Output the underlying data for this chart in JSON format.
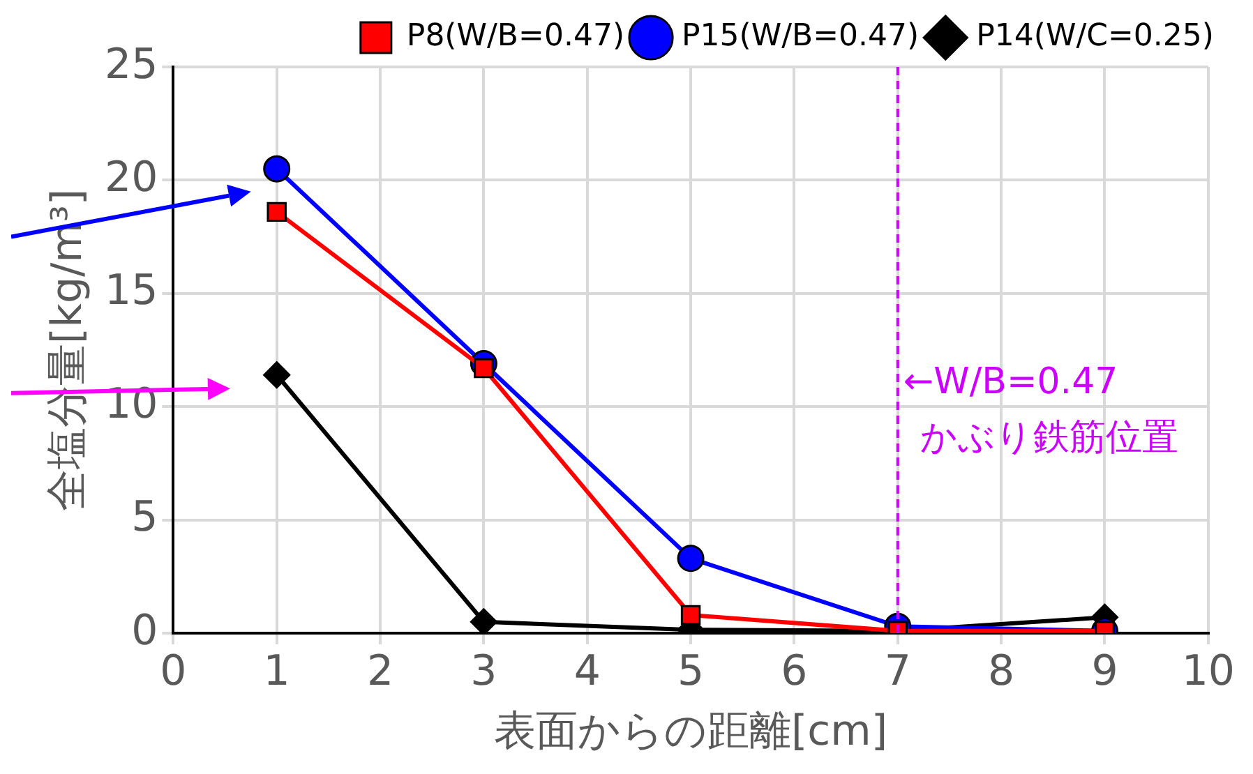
{
  "chart_data": {
    "type": "line",
    "xlabel": "表面からの距離[cm]",
    "ylabel": "全塩分量[kg/m³]",
    "xlim": [
      0,
      10
    ],
    "xticks": [
      0,
      1,
      2,
      3,
      4,
      5,
      6,
      7,
      8,
      9,
      10
    ],
    "ylim": [
      0,
      25
    ],
    "yticks": [
      0,
      5,
      10,
      15,
      20,
      25
    ],
    "x": [
      1,
      3,
      5,
      7,
      9
    ],
    "series": [
      {
        "name": "P8(W/B=0.47)",
        "color": "#ff0000",
        "marker": "square",
        "values": [
          18.6,
          11.7,
          0.8,
          0.1,
          0.1
        ]
      },
      {
        "name": "P15(W/B=0.47)",
        "color": "#0000ff",
        "marker": "circle",
        "values": [
          20.5,
          11.9,
          3.3,
          0.3,
          0.1
        ]
      },
      {
        "name": "P14(W/C=0.25)",
        "color": "#000000",
        "marker": "diamond",
        "values": [
          11.4,
          0.5,
          0.15,
          0.1,
          0.7
        ]
      }
    ],
    "ref_lines": [
      {
        "axis": "x",
        "value": 7,
        "color": "#cc00ff",
        "line_style": "dashed"
      }
    ],
    "annotations": [
      {
        "text": "←W/B=0.47\nかぶり鉄筋位置",
        "x": 7,
        "y": 11
      }
    ],
    "grid": true,
    "legend": "top right",
    "line_style": "solid"
  }
}
